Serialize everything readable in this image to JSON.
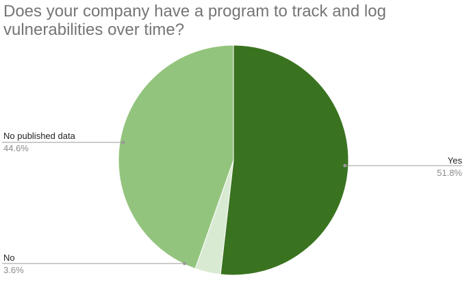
{
  "chart_data": {
    "type": "pie",
    "title": "Does your company have a program to track and log vulnerabilities over time?",
    "slices": [
      {
        "label": "Yes",
        "value": 51.8,
        "percent_label": "51.8%",
        "color": "#3a7320"
      },
      {
        "label": "No",
        "value": 3.6,
        "percent_label": "3.6%",
        "color": "#d9ead3"
      },
      {
        "label": "No published data",
        "value": 44.6,
        "percent_label": "44.6%",
        "color": "#93c47d"
      }
    ],
    "start_angle_deg": 0,
    "direction": "clockwise",
    "legend": "none"
  }
}
